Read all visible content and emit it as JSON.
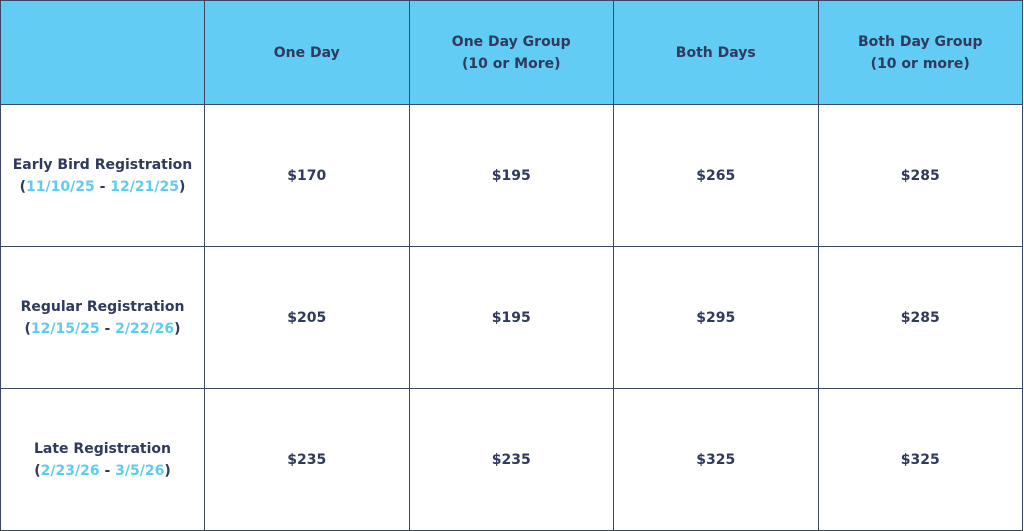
{
  "colors": {
    "header_bg": "#62ccf5",
    "border": "#3c4763",
    "text": "#2f3a5c",
    "date": "#5ecbf3"
  },
  "headers": [
    "",
    "One Day",
    "One Day Group (10 or More)",
    "Both Days",
    "Both Day Group (10 or more)"
  ],
  "header_lines": [
    [
      "",
      ""
    ],
    [
      "One Day",
      ""
    ],
    [
      "One Day Group",
      "(10 or More)"
    ],
    [
      "Both Days",
      ""
    ],
    [
      "Both Day Group",
      "(10 or more)"
    ]
  ],
  "rows": [
    {
      "label": "Early Bird Registration",
      "start": "11/10/25",
      "end": "12/21/25",
      "prices": [
        "$170",
        "$195",
        "$265",
        "$285"
      ]
    },
    {
      "label": "Regular Registration",
      "start": "12/15/25",
      "end": "2/22/26",
      "prices": [
        "$205",
        "$195",
        "$295",
        "$285"
      ]
    },
    {
      "label": "Late Registration",
      "start": "2/23/26",
      "end": "3/5/26",
      "prices": [
        "$235",
        "$235",
        "$325",
        "$325"
      ]
    }
  ]
}
